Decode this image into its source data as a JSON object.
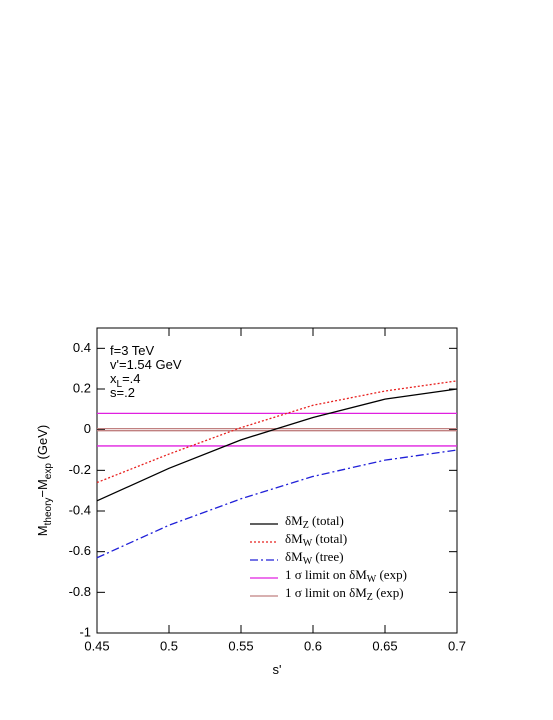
{
  "chart_data": {
    "type": "line",
    "x_label": [
      "s'"
    ],
    "y_label": [
      "M",
      "theory",
      "−M",
      "exp",
      " (GeV)"
    ],
    "annotations": [
      [
        "f=3 TeV"
      ],
      [
        "v'=1.54 GeV"
      ],
      [
        "x",
        "L",
        "=.4"
      ],
      [
        "s=.2"
      ]
    ],
    "x": [
      0.45,
      0.5,
      0.55,
      0.6,
      0.65,
      0.7
    ],
    "series": [
      {
        "name": [
          "δM",
          "Z",
          " (total)"
        ],
        "color": "#000000",
        "dash": "solid",
        "values": [
          -0.35,
          -0.19,
          -0.05,
          0.06,
          0.15,
          0.2
        ]
      },
      {
        "name": [
          "δM",
          "W",
          " (total)"
        ],
        "color": "#e8201e",
        "dash": "dotted",
        "values": [
          -0.26,
          -0.12,
          0.01,
          0.12,
          0.19,
          0.24
        ]
      },
      {
        "name": [
          "δM",
          "W",
          " (tree)"
        ],
        "color": "#2020d8",
        "dash": "dashdot",
        "values": [
          -0.63,
          -0.47,
          -0.34,
          -0.23,
          -0.15,
          -0.1
        ]
      }
    ],
    "limits": [
      {
        "name": [
          "1 σ limit on δM",
          "W",
          " (exp)"
        ],
        "color": "#e020e0",
        "values": [
          0.08,
          -0.08
        ]
      },
      {
        "name": [
          "1 σ limit on δM",
          "Z",
          " (exp)"
        ],
        "color": "#c08080",
        "values": [
          0.005,
          -0.005
        ]
      }
    ],
    "xlim": [
      0.45,
      0.7
    ],
    "xticks": [
      0.45,
      0.5,
      0.55,
      0.6,
      0.65,
      0.7
    ],
    "ylim": [
      -1,
      0.5
    ],
    "yticks": [
      -1,
      -0.8,
      -0.6,
      -0.4,
      -0.2,
      0,
      0.2,
      0.4
    ],
    "legend": "lower-right"
  }
}
